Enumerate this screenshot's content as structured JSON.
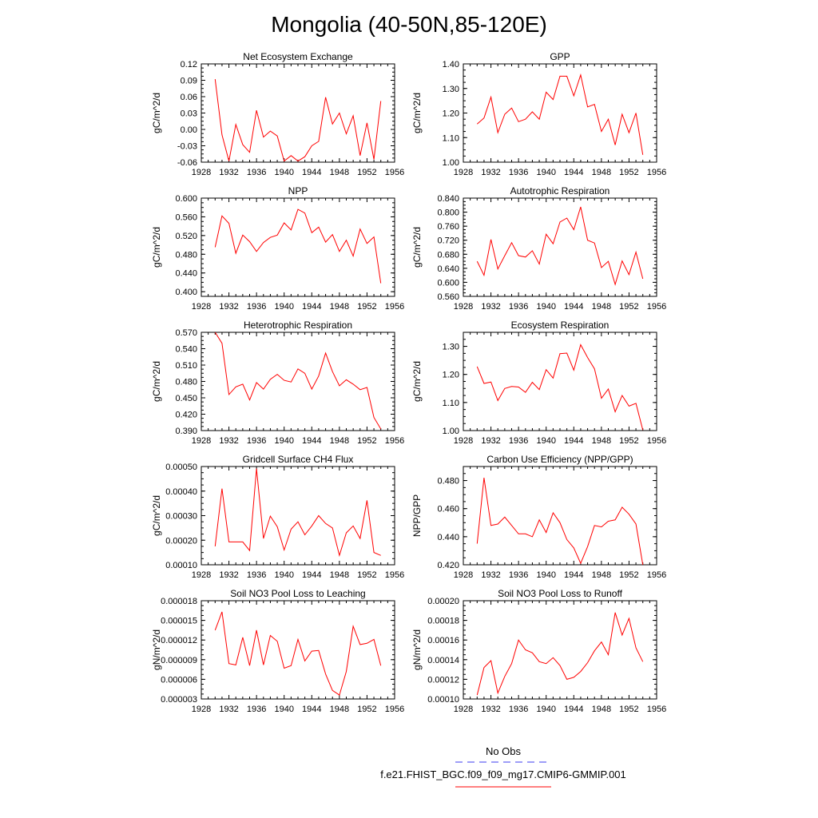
{
  "title": "Mongolia (40-50N,85-120E)",
  "legend": {
    "entries": [
      {
        "label": "No Obs",
        "color": "#0000ff",
        "style": "dashed"
      },
      {
        "label": "f.e21.FHIST_BGC.f09_f09_mg17.CMIP6-GMMIP.001",
        "color": "#ff0000",
        "style": "solid"
      }
    ]
  },
  "chart_data": [
    {
      "type": "line",
      "title": "Net Ecosystem Exchange",
      "ylabel": "gC/m^2/d",
      "xlim": [
        1928,
        1956
      ],
      "xticks": [
        "1928",
        "1932",
        "1936",
        "1940",
        "1944",
        "1948",
        "1952",
        "1956"
      ],
      "ylim": [
        -0.06,
        0.12
      ],
      "yticks": [
        "-0.06",
        "-0.03",
        "0.00",
        "0.03",
        "0.06",
        "0.09",
        "0.12"
      ],
      "x": [
        1930,
        1931,
        1932,
        1933,
        1934,
        1935,
        1936,
        1937,
        1938,
        1939,
        1940,
        1941,
        1942,
        1943,
        1944,
        1945,
        1946,
        1947,
        1948,
        1949,
        1950,
        1951,
        1952,
        1953,
        1954
      ],
      "values": [
        0.092,
        -0.01,
        -0.058,
        0.009,
        -0.028,
        -0.042,
        0.035,
        -0.014,
        -0.003,
        -0.012,
        -0.058,
        -0.048,
        -0.058,
        -0.05,
        -0.03,
        -0.022,
        0.059,
        0.01,
        0.03,
        -0.008,
        0.025,
        -0.048,
        0.012,
        -0.055,
        0.052
      ],
      "series_color": "#ff0000"
    },
    {
      "type": "line",
      "title": "GPP",
      "ylabel": "gC/m^2/d",
      "xlim": [
        1928,
        1956
      ],
      "xticks": [
        "1928",
        "1932",
        "1936",
        "1940",
        "1944",
        "1948",
        "1952",
        "1956"
      ],
      "ylim": [
        1.0,
        1.4
      ],
      "yticks": [
        "1.00",
        "1.10",
        "1.20",
        "1.30",
        "1.40"
      ],
      "x": [
        1930,
        1931,
        1932,
        1933,
        1934,
        1935,
        1936,
        1937,
        1938,
        1939,
        1940,
        1941,
        1942,
        1943,
        1944,
        1945,
        1946,
        1947,
        1948,
        1949,
        1950,
        1951,
        1952,
        1953,
        1954
      ],
      "values": [
        1.155,
        1.18,
        1.265,
        1.12,
        1.195,
        1.22,
        1.165,
        1.175,
        1.205,
        1.175,
        1.285,
        1.255,
        1.35,
        1.35,
        1.27,
        1.355,
        1.225,
        1.235,
        1.125,
        1.175,
        1.07,
        1.195,
        1.12,
        1.2,
        1.03
      ],
      "series_color": "#ff0000"
    },
    {
      "type": "line",
      "title": "NPP",
      "ylabel": "gC/m^2/d",
      "xlim": [
        1928,
        1956
      ],
      "xticks": [
        "1928",
        "1932",
        "1936",
        "1940",
        "1944",
        "1948",
        "1952",
        "1956"
      ],
      "ylim": [
        0.39,
        0.6
      ],
      "yticks": [
        "0.400",
        "0.440",
        "0.480",
        "0.520",
        "0.560",
        "0.600"
      ],
      "x": [
        1930,
        1931,
        1932,
        1933,
        1934,
        1935,
        1936,
        1937,
        1938,
        1939,
        1940,
        1941,
        1942,
        1943,
        1944,
        1945,
        1946,
        1947,
        1948,
        1949,
        1950,
        1951,
        1952,
        1953,
        1954
      ],
      "values": [
        0.495,
        0.562,
        0.546,
        0.482,
        0.521,
        0.507,
        0.486,
        0.505,
        0.516,
        0.521,
        0.547,
        0.532,
        0.576,
        0.568,
        0.526,
        0.538,
        0.506,
        0.522,
        0.486,
        0.51,
        0.476,
        0.534,
        0.503,
        0.517,
        0.418
      ],
      "series_color": "#ff0000"
    },
    {
      "type": "line",
      "title": "Autotrophic Respiration",
      "ylabel": "gC/m^2/d",
      "xlim": [
        1928,
        1956
      ],
      "xticks": [
        "1928",
        "1932",
        "1936",
        "1940",
        "1944",
        "1948",
        "1952",
        "1956"
      ],
      "ylim": [
        0.56,
        0.84
      ],
      "yticks": [
        "0.560",
        "0.600",
        "0.640",
        "0.680",
        "0.720",
        "0.760",
        "0.800",
        "0.840"
      ],
      "x": [
        1930,
        1931,
        1932,
        1933,
        1934,
        1935,
        1936,
        1937,
        1938,
        1939,
        1940,
        1941,
        1942,
        1943,
        1944,
        1945,
        1946,
        1947,
        1948,
        1949,
        1950,
        1951,
        1952,
        1953,
        1954
      ],
      "values": [
        0.66,
        0.62,
        0.722,
        0.638,
        0.676,
        0.713,
        0.676,
        0.672,
        0.69,
        0.652,
        0.737,
        0.71,
        0.772,
        0.783,
        0.75,
        0.815,
        0.72,
        0.712,
        0.642,
        0.66,
        0.594,
        0.661,
        0.622,
        0.686,
        0.61
      ],
      "series_color": "#ff0000"
    },
    {
      "type": "line",
      "title": "Heterotrophic Respiration",
      "ylabel": "gC/m^2/d",
      "xlim": [
        1928,
        1956
      ],
      "xticks": [
        "1928",
        "1932",
        "1936",
        "1940",
        "1944",
        "1948",
        "1952",
        "1956"
      ],
      "ylim": [
        0.39,
        0.57
      ],
      "yticks": [
        "0.390",
        "0.420",
        "0.450",
        "0.480",
        "0.510",
        "0.540",
        "0.570"
      ],
      "x": [
        1930,
        1931,
        1932,
        1933,
        1934,
        1935,
        1936,
        1937,
        1938,
        1939,
        1940,
        1941,
        1942,
        1943,
        1944,
        1945,
        1946,
        1947,
        1948,
        1949,
        1950,
        1951,
        1952,
        1953,
        1954
      ],
      "values": [
        0.57,
        0.55,
        0.456,
        0.47,
        0.475,
        0.446,
        0.478,
        0.466,
        0.484,
        0.493,
        0.482,
        0.479,
        0.503,
        0.495,
        0.466,
        0.49,
        0.532,
        0.498,
        0.472,
        0.483,
        0.475,
        0.465,
        0.469,
        0.414,
        0.393
      ],
      "series_color": "#ff0000"
    },
    {
      "type": "line",
      "title": "Ecosystem Respiration",
      "ylabel": "gC/m^2/d",
      "xlim": [
        1928,
        1956
      ],
      "xticks": [
        "1928",
        "1932",
        "1936",
        "1940",
        "1944",
        "1948",
        "1952",
        "1956"
      ],
      "ylim": [
        1.0,
        1.35
      ],
      "yticks": [
        "1.00",
        "1.10",
        "1.20",
        "1.30"
      ],
      "x": [
        1930,
        1931,
        1932,
        1933,
        1934,
        1935,
        1936,
        1937,
        1938,
        1939,
        1940,
        1941,
        1942,
        1943,
        1944,
        1945,
        1946,
        1947,
        1948,
        1949,
        1950,
        1951,
        1952,
        1953,
        1954
      ],
      "values": [
        1.228,
        1.168,
        1.173,
        1.107,
        1.15,
        1.157,
        1.155,
        1.136,
        1.172,
        1.146,
        1.217,
        1.187,
        1.274,
        1.276,
        1.215,
        1.306,
        1.26,
        1.22,
        1.115,
        1.148,
        1.067,
        1.125,
        1.087,
        1.097,
        1.002
      ],
      "series_color": "#ff0000"
    },
    {
      "type": "line",
      "title": "Gridcell Surface CH4 Flux",
      "ylabel": "gC/m^2/d",
      "xlim": [
        1928,
        1956
      ],
      "xticks": [
        "1928",
        "1932",
        "1936",
        "1940",
        "1944",
        "1948",
        "1952",
        "1956"
      ],
      "ylim": [
        0.0001,
        0.0005
      ],
      "yticks": [
        "0.00010",
        "0.00020",
        "0.00030",
        "0.00040",
        "0.00050"
      ],
      "x": [
        1930,
        1931,
        1932,
        1933,
        1934,
        1935,
        1936,
        1937,
        1938,
        1939,
        1940,
        1941,
        1942,
        1943,
        1944,
        1945,
        1946,
        1947,
        1948,
        1949,
        1950,
        1951,
        1952,
        1953,
        1954
      ],
      "values": [
        0.000175,
        0.00041,
        0.000193,
        0.000193,
        0.000193,
        0.000158,
        0.000492,
        0.000207,
        0.000298,
        0.000255,
        0.00016,
        0.000245,
        0.000275,
        0.000222,
        0.000258,
        0.0003,
        0.000268,
        0.00025,
        0.000138,
        0.00023,
        0.000258,
        0.000207,
        0.000362,
        0.00015,
        0.000138
      ],
      "series_color": "#ff0000"
    },
    {
      "type": "line",
      "title": "Carbon Use Efficiency (NPP/GPP)",
      "ylabel": "NPP/GPP",
      "xlim": [
        1928,
        1956
      ],
      "xticks": [
        "1928",
        "1932",
        "1936",
        "1940",
        "1944",
        "1948",
        "1952",
        "1956"
      ],
      "ylim": [
        0.42,
        0.49
      ],
      "yticks": [
        "0.420",
        "0.440",
        "0.460",
        "0.480"
      ],
      "x": [
        1930,
        1931,
        1932,
        1933,
        1934,
        1935,
        1936,
        1937,
        1938,
        1939,
        1940,
        1941,
        1942,
        1943,
        1944,
        1945,
        1946,
        1947,
        1948,
        1949,
        1950,
        1951,
        1952,
        1953,
        1954
      ],
      "values": [
        0.435,
        0.482,
        0.448,
        0.449,
        0.454,
        0.448,
        0.442,
        0.442,
        0.44,
        0.452,
        0.443,
        0.457,
        0.45,
        0.438,
        0.432,
        0.421,
        0.433,
        0.448,
        0.447,
        0.451,
        0.452,
        0.461,
        0.456,
        0.449,
        0.42
      ],
      "series_color": "#ff0000"
    },
    {
      "type": "line",
      "title": "Soil NO3 Pool Loss to Leaching",
      "ylabel": "gN/m^2/d",
      "xlim": [
        1928,
        1956
      ],
      "xticks": [
        "1928",
        "1932",
        "1936",
        "1940",
        "1944",
        "1948",
        "1952",
        "1956"
      ],
      "ylim": [
        3e-06,
        1.8e-05
      ],
      "yticks": [
        "0.000003",
        "0.000006",
        "0.000009",
        "0.000012",
        "0.000015",
        "0.000018"
      ],
      "x": [
        1930,
        1931,
        1932,
        1933,
        1934,
        1935,
        1936,
        1937,
        1938,
        1939,
        1940,
        1941,
        1942,
        1943,
        1944,
        1945,
        1946,
        1947,
        1948,
        1949,
        1950,
        1951,
        1952,
        1953,
        1954
      ],
      "values": [
        1.35e-05,
        1.63e-05,
        8.4e-06,
        8.2e-06,
        1.24e-05,
        8.1e-06,
        1.35e-05,
        8.2e-06,
        1.27e-05,
        1.18e-05,
        7.7e-06,
        8.1e-06,
        1.21e-05,
        8.8e-06,
        1.03e-05,
        1.04e-05,
        6.8e-06,
        4.3e-06,
        3.6e-06,
        7.2e-06,
        1.41e-05,
        1.13e-05,
        1.15e-05,
        1.21e-05,
        8.1e-06
      ],
      "series_color": "#ff0000"
    },
    {
      "type": "line",
      "title": "Soil NO3 Pool Loss to Runoff",
      "ylabel": "gN/m^2/d",
      "xlim": [
        1928,
        1956
      ],
      "xticks": [
        "1928",
        "1932",
        "1936",
        "1940",
        "1944",
        "1948",
        "1952",
        "1956"
      ],
      "ylim": [
        0.0001,
        0.0002
      ],
      "yticks": [
        "0.00010",
        "0.00012",
        "0.00014",
        "0.00016",
        "0.00018",
        "0.00020"
      ],
      "x": [
        1930,
        1931,
        1932,
        1933,
        1934,
        1935,
        1936,
        1937,
        1938,
        1939,
        1940,
        1941,
        1942,
        1943,
        1944,
        1945,
        1946,
        1947,
        1948,
        1949,
        1950,
        1951,
        1952,
        1953,
        1954
      ],
      "values": [
        0.000104,
        0.000132,
        0.000139,
        0.000106,
        0.000123,
        0.000136,
        0.00016,
        0.00015,
        0.000147,
        0.000138,
        0.000136,
        0.000142,
        0.000134,
        0.00012,
        0.000122,
        0.000128,
        0.000137,
        0.000149,
        0.000158,
        0.000145,
        0.000188,
        0.000165,
        0.000182,
        0.000152,
        0.000138
      ],
      "series_color": "#ff0000"
    }
  ]
}
